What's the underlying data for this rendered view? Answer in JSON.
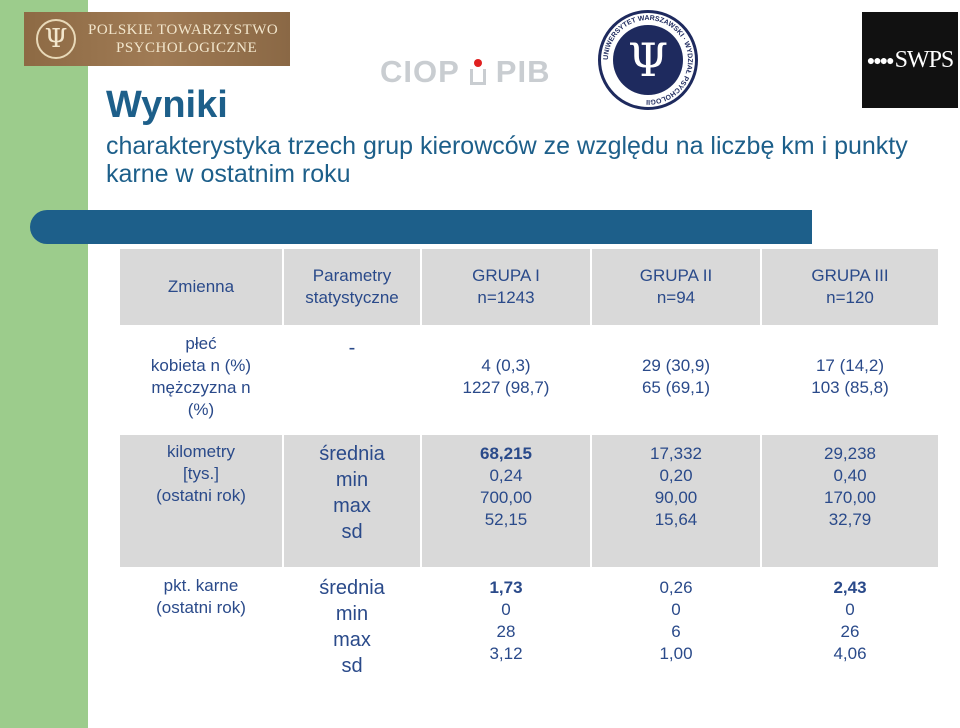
{
  "logos": {
    "pto_line1": "POLSKIE TOWARZYSTWO",
    "pto_line2": "PSYCHOLOGICZNE",
    "ciop_left": "CIOP",
    "ciop_right": "PIB",
    "uw_ring": "UNIWERSYTET WARSZAWSKI · WYDZIAŁ PSYCHOLOGII",
    "swps": "SWPS"
  },
  "title": "Wyniki",
  "subtitle": "charakterystyka trzech grup kierowców ze względu na liczbę km i punkty karne w ostatnim roku",
  "table": {
    "header": {
      "var": [
        "Zmienna"
      ],
      "stat": [
        "Parametry",
        "statystyczne"
      ],
      "g1": [
        "GRUPA I",
        "n=1243"
      ],
      "g2": [
        "GRUPA II",
        "n=94"
      ],
      "g3": [
        "GRUPA III",
        "n=120"
      ]
    },
    "rows": [
      {
        "var": [
          "płeć",
          "kobieta n (%)",
          "mężczyzna n",
          "(%)"
        ],
        "stat": [
          "-"
        ],
        "g1": [
          "4 (0,3)",
          "1227 (98,7)"
        ],
        "g2": [
          "29 (30,9)",
          "65 (69,1)"
        ],
        "g3": [
          "17 (14,2)",
          "103 (85,8)"
        ]
      },
      {
        "var": [
          "kilometry",
          "[tys.]",
          "(ostatni rok)"
        ],
        "stat": [
          "średnia",
          "min",
          "max",
          "sd"
        ],
        "g1": [
          "68,215",
          "0,24",
          "700,00",
          "52,15"
        ],
        "g2": [
          "17,332",
          "0,20",
          "90,00",
          "15,64"
        ],
        "g3": [
          "29,238",
          "0,40",
          "170,00",
          "32,79"
        ]
      },
      {
        "var": [
          "pkt. karne",
          "(ostatni rok)"
        ],
        "stat": [
          "średnia",
          "min",
          "max",
          "sd"
        ],
        "g1": [
          "1,73",
          "0",
          "28",
          "3,12"
        ],
        "g2": [
          "0,26",
          "0",
          "6",
          "1,00"
        ],
        "g3": [
          "2,43",
          "0",
          "26",
          "4,06"
        ]
      }
    ]
  },
  "colors": {
    "accent": "#1d5f8a",
    "left_strip": "#9ccc8c",
    "table_shade": "#d9d9d9",
    "cell_text": "#2a4a8a"
  }
}
